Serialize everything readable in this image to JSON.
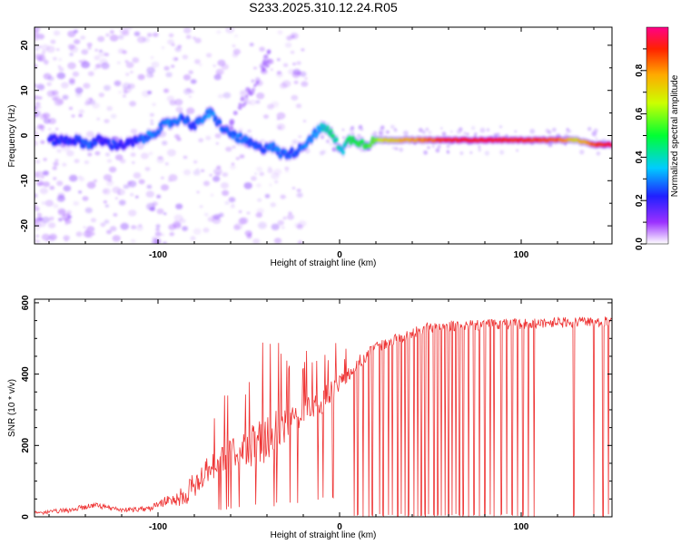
{
  "chart_data": [
    {
      "type": "heatmap",
      "title": "S233.2025.310.12.24.R05",
      "xlabel": "Height of straight line (km)",
      "ylabel": "Frequency (Hz)",
      "xlim": [
        -168,
        150
      ],
      "ylim": [
        -24,
        24
      ],
      "xticks": [
        -100,
        0,
        100
      ],
      "yticks": [
        -20,
        -10,
        0,
        10,
        20
      ],
      "ridge": {
        "x": [
          -145,
          -138,
          -132,
          -125,
          -118,
          -110,
          -104,
          -98,
          -92,
          -86,
          -80,
          -75,
          -71,
          -67,
          -63,
          -58,
          -53,
          -48,
          -43,
          -38,
          -33,
          -27,
          -22,
          -17,
          -12,
          -8,
          -4,
          -1,
          2,
          5,
          9,
          14,
          20,
          25,
          40,
          60,
          80,
          100,
          120,
          130,
          140,
          150
        ],
        "freq": [
          -1,
          -2,
          -1,
          -2,
          -2,
          -1,
          0,
          2,
          3,
          4,
          2,
          4,
          5,
          3,
          1,
          0,
          -1,
          -2,
          -3,
          -2,
          -4,
          -4,
          -3,
          -1,
          1,
          2,
          0,
          -2,
          -3,
          -1,
          -1,
          -2,
          -1,
          -1,
          -1,
          -1,
          -1,
          -1,
          -1,
          -1,
          -2,
          -2
        ],
        "amp": [
          0.22,
          0.28,
          0.2,
          0.24,
          0.2,
          0.25,
          0.3,
          0.28,
          0.3,
          0.26,
          0.25,
          0.3,
          0.32,
          0.28,
          0.26,
          0.28,
          0.3,
          0.26,
          0.25,
          0.28,
          0.28,
          0.25,
          0.28,
          0.3,
          0.32,
          0.42,
          0.45,
          0.42,
          0.35,
          0.5,
          0.5,
          0.52,
          0.6,
          0.7,
          0.78,
          0.9,
          0.92,
          0.9,
          0.85,
          0.7,
          0.85,
          0.95
        ]
      },
      "colorbar": {
        "label": "Normalized spectral amplitude",
        "range": [
          0,
          1
        ],
        "ticks": [
          "0.0",
          "0.2",
          "0.4",
          "0.6",
          "0.8"
        ],
        "tick_values": [
          0,
          0.2,
          0.4,
          0.6,
          0.8
        ]
      }
    },
    {
      "type": "line",
      "xlabel": "Height of straight line (km)",
      "ylabel": "SNR (10 * v/v)",
      "xlim": [
        -168,
        150
      ],
      "ylim": [
        0,
        610
      ],
      "xticks": [
        -100,
        0,
        100
      ],
      "yticks": [
        0,
        200,
        400,
        600
      ],
      "color": "#ee3333",
      "series": [
        {
          "name": "SNR",
          "x": [
            -168,
            -150,
            -135,
            -120,
            -105,
            -95,
            -85,
            -78,
            -70,
            -62,
            -55,
            -48,
            -42,
            -35,
            -30,
            -25,
            -20,
            -15,
            -10,
            -5,
            0,
            5,
            10,
            15,
            20,
            25,
            30,
            35,
            40,
            45,
            50,
            60,
            70,
            80,
            90,
            100,
            110,
            120,
            130,
            140,
            150
          ],
          "envelope": [
            15,
            25,
            40,
            25,
            30,
            60,
            90,
            140,
            180,
            210,
            240,
            260,
            280,
            300,
            310,
            320,
            330,
            340,
            360,
            380,
            400,
            420,
            450,
            470,
            490,
            500,
            510,
            520,
            530,
            540,
            545,
            550,
            550,
            555,
            555,
            555,
            560,
            560,
            560,
            560,
            565
          ],
          "spread": [
            10,
            15,
            15,
            12,
            15,
            30,
            60,
            80,
            80,
            80,
            100,
            120,
            140,
            110,
            130,
            90,
            70,
            70,
            80,
            60,
            50,
            40,
            40,
            35,
            30,
            30,
            30,
            30,
            30,
            30,
            30,
            30,
            30,
            30,
            30,
            30,
            30,
            30,
            30,
            30,
            30
          ]
        }
      ],
      "dropouts": [
        8,
        10,
        13,
        16,
        18,
        22,
        24,
        27,
        29,
        32,
        34,
        36,
        38,
        41,
        43,
        45,
        47,
        49,
        52,
        54,
        56,
        58,
        60,
        62,
        64,
        66,
        68,
        71,
        74,
        77,
        80,
        83,
        85,
        89,
        92,
        95,
        98,
        101,
        104,
        107,
        129,
        140,
        145,
        148
      ]
    }
  ]
}
